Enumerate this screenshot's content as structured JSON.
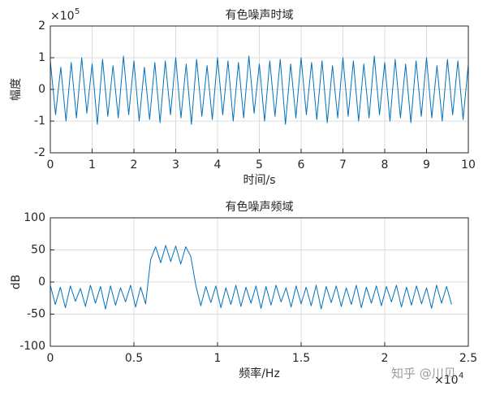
{
  "chart_data": [
    {
      "type": "line",
      "title": "有色噪声时域",
      "xlabel": "时间/s",
      "ylabel": "幅度",
      "y_exponent": {
        "base": "×10",
        "power": "5"
      },
      "xlim": [
        0,
        10
      ],
      "xticks": [
        0,
        1,
        2,
        3,
        4,
        5,
        6,
        7,
        8,
        9,
        10
      ],
      "ylim": [
        -2,
        2
      ],
      "yticks": [
        -2,
        -1,
        0,
        1,
        2
      ],
      "grid": true,
      "color": "#0072bd",
      "x": [
        0,
        0.125,
        0.25,
        0.375,
        0.5,
        0.625,
        0.75,
        0.875,
        1,
        1.125,
        1.25,
        1.375,
        1.5,
        1.625,
        1.75,
        1.875,
        2,
        2.125,
        2.25,
        2.375,
        2.5,
        2.625,
        2.75,
        2.875,
        3,
        3.125,
        3.25,
        3.375,
        3.5,
        3.625,
        3.75,
        3.875,
        4,
        4.125,
        4.25,
        4.375,
        4.5,
        4.625,
        4.75,
        4.875,
        5,
        5.125,
        5.25,
        5.375,
        5.5,
        5.625,
        5.75,
        5.875,
        6,
        6.125,
        6.25,
        6.375,
        6.5,
        6.625,
        6.75,
        6.875,
        7,
        7.125,
        7.25,
        7.375,
        7.5,
        7.625,
        7.75,
        7.875,
        8,
        8.125,
        8.25,
        8.375,
        8.5,
        8.625,
        8.75,
        8.875,
        9,
        9.125,
        9.25,
        9.375,
        9.5,
        9.625,
        9.75,
        9.875,
        10
      ],
      "values": [
        0.9,
        -0.8,
        0.7,
        -1.0,
        0.85,
        -0.9,
        1.0,
        -0.75,
        0.8,
        -1.1,
        0.95,
        -0.85,
        0.75,
        -0.9,
        1.05,
        -0.8,
        0.9,
        -1.0,
        0.7,
        -0.95,
        0.85,
        -1.05,
        0.9,
        -0.8,
        1.0,
        -0.9,
        0.8,
        -1.1,
        0.95,
        -0.85,
        0.75,
        -0.95,
        1.0,
        -0.8,
        0.9,
        -1.0,
        0.85,
        -0.9,
        1.05,
        -0.75,
        0.8,
        -1.0,
        0.9,
        -0.85,
        0.95,
        -1.1,
        0.8,
        -0.9,
        1.0,
        -0.8,
        0.85,
        -0.95,
        0.9,
        -1.05,
        0.75,
        -0.9,
        1.0,
        -0.85,
        0.9,
        -1.0,
        0.8,
        -0.9,
        1.05,
        -0.8,
        0.85,
        -1.0,
        0.95,
        -0.9,
        0.8,
        -1.05,
        0.9,
        -0.85,
        1.0,
        -0.9,
        0.75,
        -1.0,
        0.95,
        -0.8,
        0.9,
        -0.95,
        0.8
      ]
    },
    {
      "type": "line",
      "title": "有色噪声频域",
      "xlabel": "频率/Hz",
      "ylabel": "dB",
      "x_exponent": {
        "base": "×10",
        "power": "4"
      },
      "xlim": [
        0,
        2.5
      ],
      "xticks": [
        0,
        0.5,
        1,
        1.5,
        2,
        2.5
      ],
      "ylim": [
        -100,
        100
      ],
      "yticks": [
        -100,
        -50,
        0,
        50,
        100
      ],
      "grid": true,
      "color": "#0072bd",
      "x": [
        0,
        0.03,
        0.06,
        0.09,
        0.12,
        0.15,
        0.18,
        0.21,
        0.24,
        0.27,
        0.3,
        0.33,
        0.36,
        0.39,
        0.42,
        0.45,
        0.48,
        0.51,
        0.54,
        0.57,
        0.6,
        0.63,
        0.66,
        0.69,
        0.72,
        0.75,
        0.78,
        0.81,
        0.84,
        0.87,
        0.9,
        0.93,
        0.96,
        0.99,
        1.02,
        1.05,
        1.08,
        1.11,
        1.14,
        1.17,
        1.2,
        1.23,
        1.26,
        1.29,
        1.32,
        1.35,
        1.38,
        1.41,
        1.44,
        1.47,
        1.5,
        1.53,
        1.56,
        1.59,
        1.62,
        1.65,
        1.68,
        1.71,
        1.74,
        1.77,
        1.8,
        1.83,
        1.86,
        1.89,
        1.92,
        1.95,
        1.98,
        2.01,
        2.04,
        2.07,
        2.1,
        2.13,
        2.16,
        2.19,
        2.22,
        2.25,
        2.28,
        2.31,
        2.34,
        2.37,
        2.4
      ],
      "values": [
        -5,
        -35,
        -8,
        -40,
        -6,
        -30,
        -10,
        -38,
        -5,
        -33,
        -7,
        -42,
        -6,
        -36,
        -9,
        -31,
        -5,
        -39,
        -8,
        -34,
        35,
        55,
        30,
        57,
        32,
        56,
        28,
        55,
        40,
        -5,
        -37,
        -7,
        -32,
        -6,
        -40,
        -9,
        -35,
        -5,
        -38,
        -8,
        -33,
        -6,
        -41,
        -7,
        -36,
        -5,
        -31,
        -9,
        -39,
        -6,
        -34,
        -8,
        -37,
        -5,
        -42,
        -7,
        -32,
        -6,
        -38,
        -9,
        -35,
        -5,
        -40,
        -8,
        -33,
        -6,
        -37,
        -7,
        -31,
        -5,
        -39,
        -8,
        -36,
        -6,
        -34,
        -9,
        -41,
        -5,
        -33,
        -7,
        -35
      ]
    }
  ],
  "watermark": "知乎 @川贝"
}
